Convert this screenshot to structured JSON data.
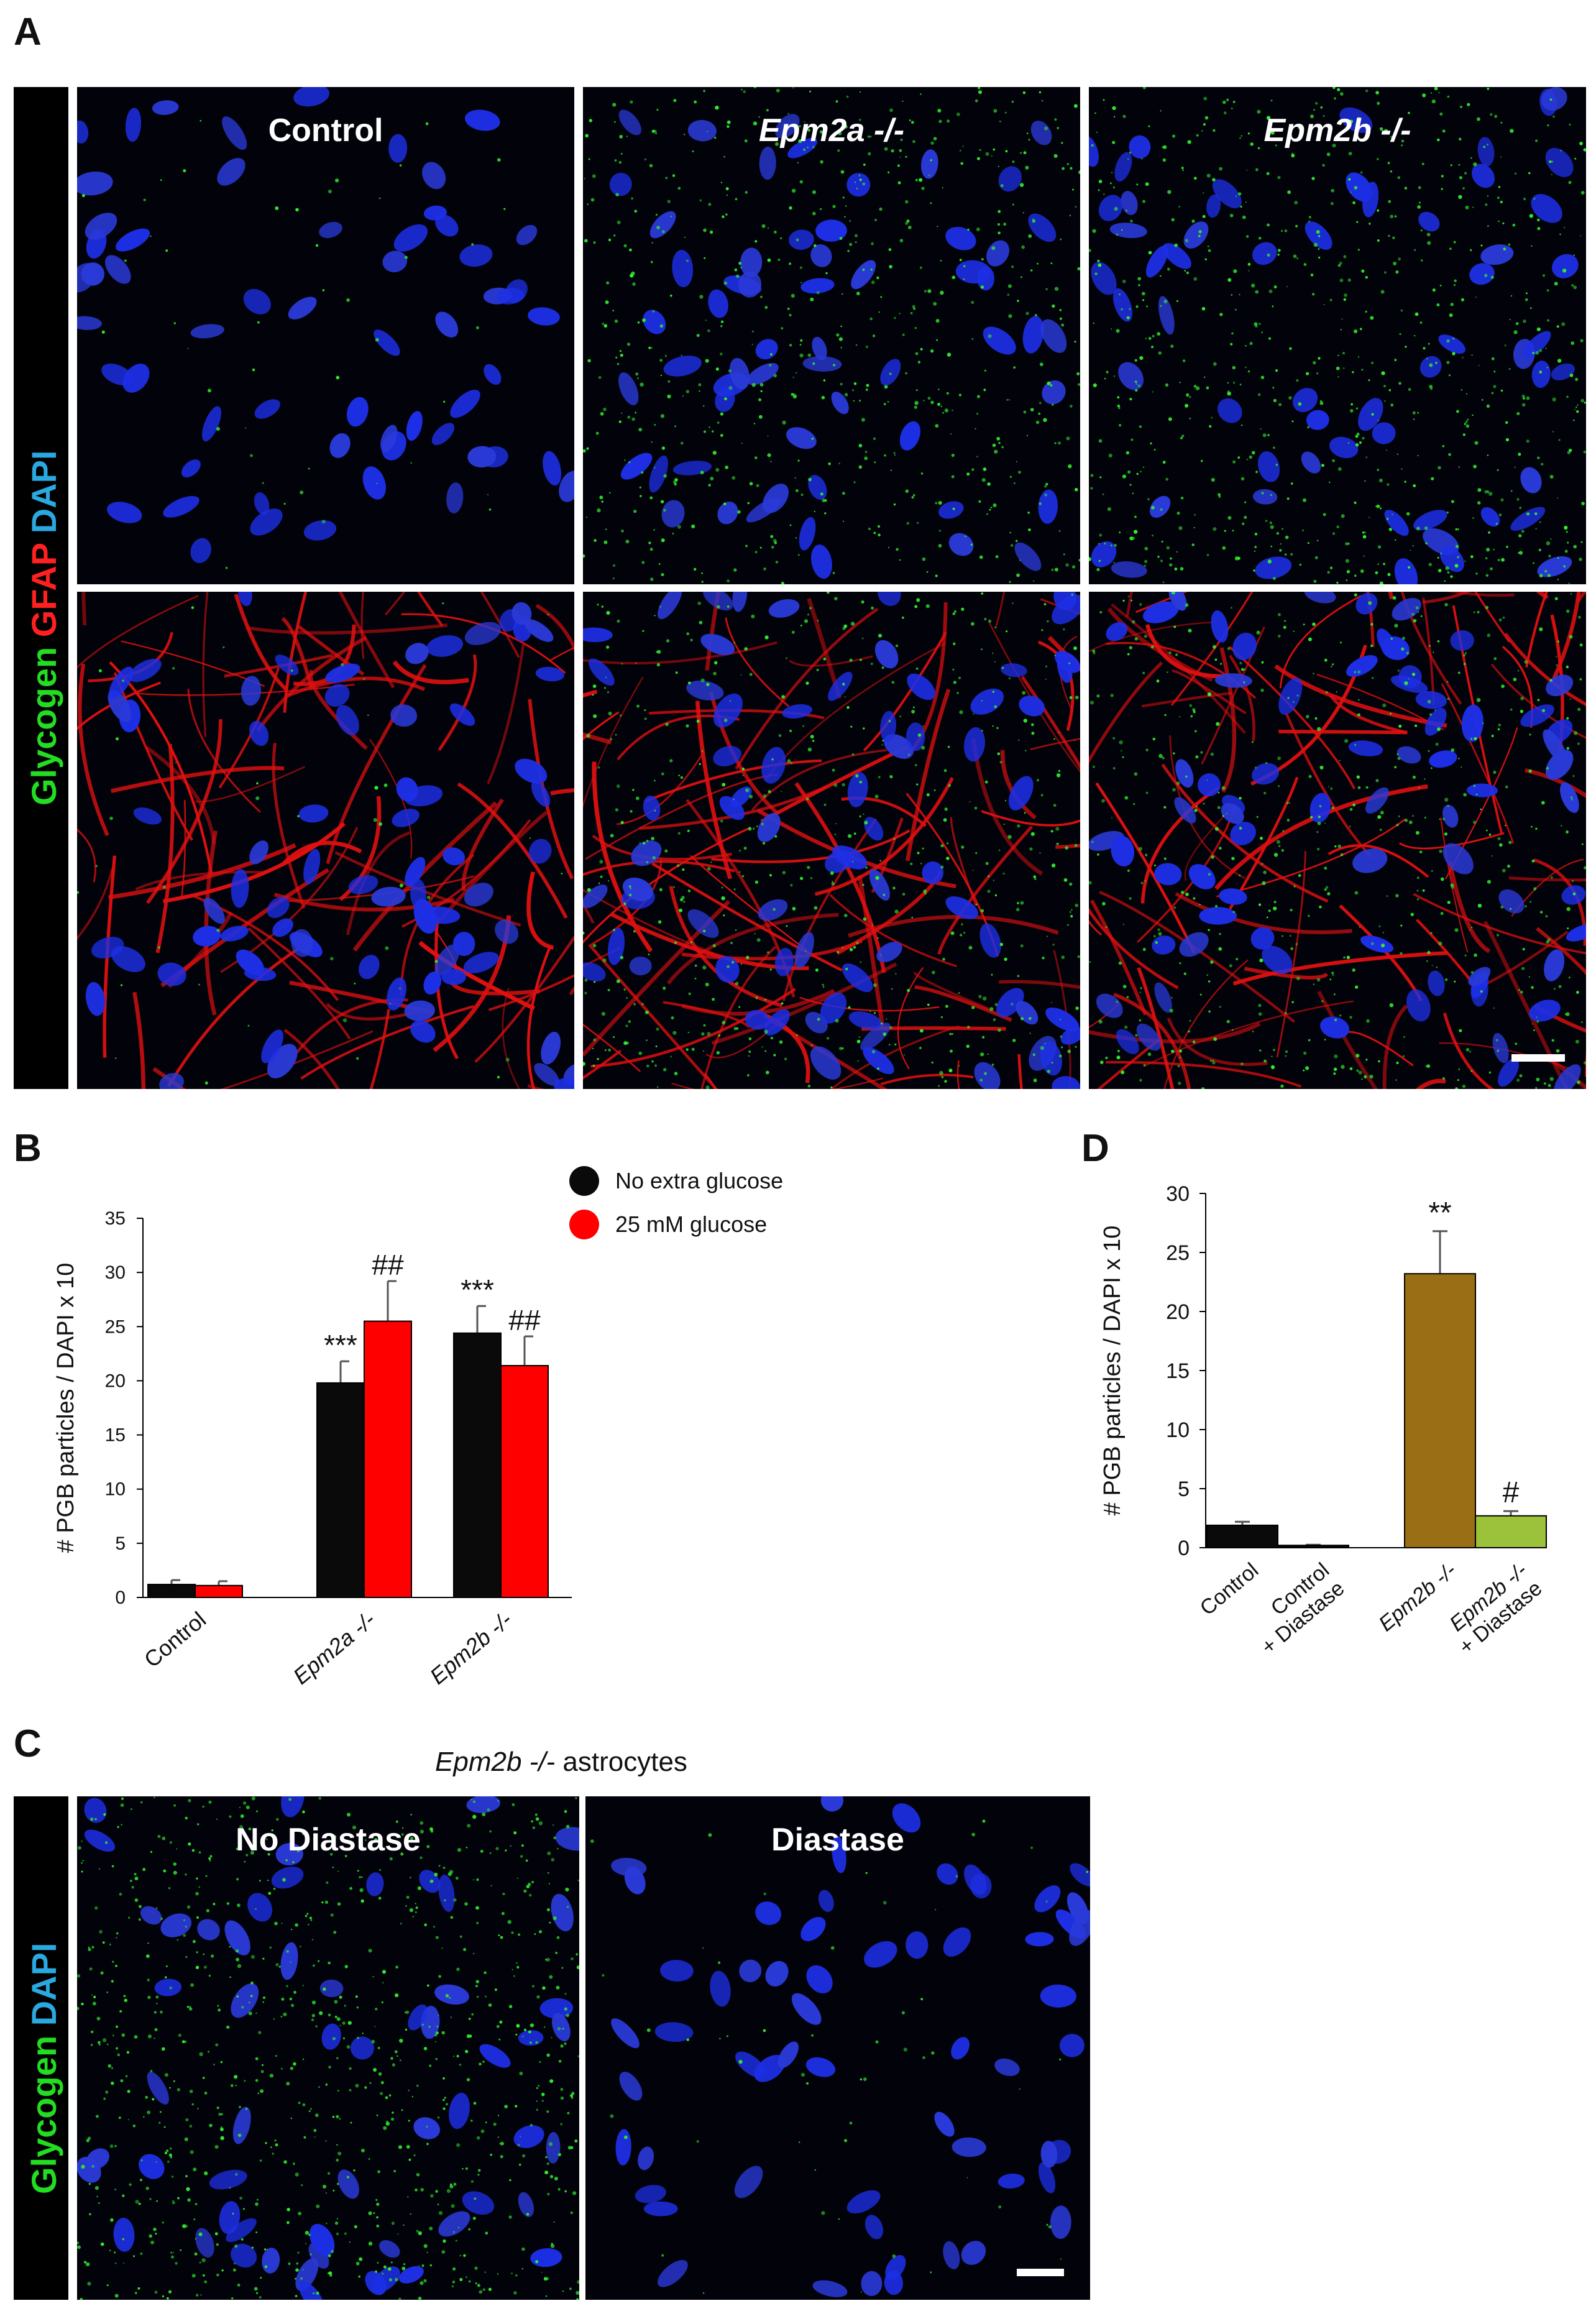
{
  "panel_letters": {
    "a": "A",
    "b": "B",
    "c": "C",
    "d": "D"
  },
  "panel_a": {
    "stain_label": {
      "part1": "Glycogen",
      "part2": "GFAP",
      "part3": "DAPI"
    },
    "stain_colors": {
      "glycogen": "#22dd22",
      "gfap": "#ff2020",
      "dapi": "#2aa8e0"
    },
    "columns": [
      "Control",
      "Epm2a -/-",
      "Epm2b -/-"
    ]
  },
  "panel_c": {
    "caption_italic": "Epm2b -/-",
    "caption_rest": " astrocytes",
    "stain_label": {
      "part1": "Glycogen",
      "part2": "DAPI"
    },
    "columns": [
      "No Diastase",
      "Diastase"
    ]
  },
  "chart_data": [
    {
      "panel": "B",
      "type": "bar",
      "ylabel": "# PGB particles / DAPI  x 10",
      "ylim": [
        0,
        35
      ],
      "yticks": [
        "0",
        "5",
        "10",
        "15",
        "20",
        "25",
        "30",
        "35"
      ],
      "categories": [
        "Control",
        "Epm2a -/-",
        "Epm2b -/-"
      ],
      "series": [
        {
          "name": "No extra glucose",
          "color": "#0a0a0a",
          "values": [
            1.2,
            19.8,
            24.4
          ],
          "errors": [
            0.4,
            2.0,
            2.5
          ]
        },
        {
          "name": "25 mM glucose",
          "color": "#ff0000",
          "values": [
            1.1,
            25.5,
            21.4
          ],
          "errors": [
            0.4,
            3.7,
            2.7
          ]
        }
      ],
      "annotations": [
        {
          "category": 1,
          "series": 0,
          "text": "***"
        },
        {
          "category": 1,
          "series": 1,
          "text": "##"
        },
        {
          "category": 2,
          "series": 0,
          "text": "***"
        },
        {
          "category": 2,
          "series": 1,
          "text": "##"
        }
      ],
      "legend": "top-right"
    },
    {
      "panel": "D",
      "type": "bar",
      "ylabel": "# PGB particles / DAPI  x 10",
      "ylim": [
        0,
        30
      ],
      "yticks": [
        "0",
        "5",
        "10",
        "15",
        "20",
        "25",
        "30"
      ],
      "categories": [
        "Control",
        "Control + Diastase",
        "Epm2b -/-",
        "Epm2b -/- + Diastase"
      ],
      "category_lines": [
        [
          "Control"
        ],
        [
          "Control",
          "+ Diastase"
        ],
        [
          "Epm2b -/-"
        ],
        [
          "Epm2b -/-",
          "+ Diastase"
        ]
      ],
      "category_italic": [
        [
          false
        ],
        [
          false,
          false
        ],
        [
          true
        ],
        [
          true,
          false
        ]
      ],
      "values": [
        1.9,
        0.2,
        23.2,
        2.7
      ],
      "errors": [
        0.3,
        0.05,
        3.6,
        0.4
      ],
      "colors": [
        "#0a0a0a",
        "#0a0a0a",
        "#9a6e14",
        "#9bc23a"
      ],
      "annotations": [
        {
          "category": 2,
          "text": "**"
        },
        {
          "category": 3,
          "text": "#"
        }
      ]
    }
  ]
}
